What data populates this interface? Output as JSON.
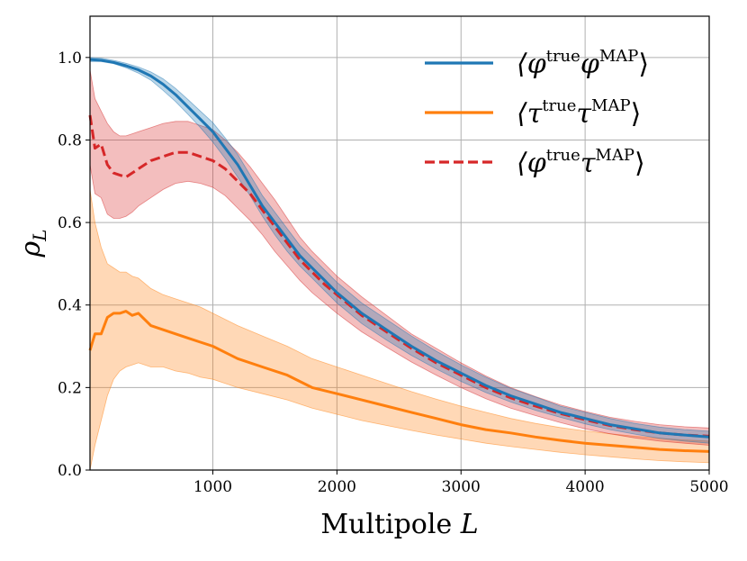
{
  "chart_data": {
    "type": "line",
    "title": "",
    "xlabel": "Multipole L",
    "ylabel": "ρ_L",
    "xlim": [
      10,
      5000
    ],
    "ylim": [
      0.0,
      1.1
    ],
    "xticks": [
      1000,
      2000,
      3000,
      4000,
      5000
    ],
    "xtick_labels": [
      "1000",
      "2000",
      "3000",
      "4000",
      "5000"
    ],
    "yticks": [
      0.0,
      0.2,
      0.4,
      0.6,
      0.8,
      1.0
    ],
    "ytick_labels": [
      "0.0",
      "0.2",
      "0.4",
      "0.6",
      "0.8",
      "1.0"
    ],
    "grid": true,
    "legend_position": "top-right",
    "series": [
      {
        "name": "⟨φ^true φ^MAP⟩",
        "legend_main": "⟨φ",
        "legend_sup1": "true",
        "legend_mid": "φ",
        "legend_sup2": "MAP",
        "legend_close": "⟩",
        "color": "#1f77b4",
        "linestyle": "solid",
        "x": [
          10,
          100,
          200,
          300,
          400,
          500,
          600,
          700,
          800,
          900,
          1000,
          1100,
          1200,
          1300,
          1400,
          1500,
          1600,
          1700,
          1800,
          1900,
          2000,
          2200,
          2400,
          2600,
          2800,
          3000,
          3200,
          3400,
          3600,
          3800,
          4000,
          4200,
          4400,
          4600,
          4800,
          5000
        ],
        "y": [
          0.995,
          0.993,
          0.988,
          0.98,
          0.97,
          0.955,
          0.935,
          0.91,
          0.88,
          0.85,
          0.82,
          0.78,
          0.74,
          0.69,
          0.64,
          0.6,
          0.56,
          0.52,
          0.49,
          0.46,
          0.43,
          0.38,
          0.34,
          0.3,
          0.265,
          0.235,
          0.205,
          0.18,
          0.16,
          0.14,
          0.125,
          0.11,
          0.1,
          0.09,
          0.085,
          0.08
        ],
        "band_lower": [
          0.99,
          0.99,
          0.985,
          0.975,
          0.962,
          0.945,
          0.92,
          0.893,
          0.862,
          0.83,
          0.795,
          0.755,
          0.71,
          0.665,
          0.615,
          0.57,
          0.53,
          0.495,
          0.465,
          0.435,
          0.405,
          0.355,
          0.315,
          0.278,
          0.245,
          0.215,
          0.188,
          0.165,
          0.145,
          0.128,
          0.112,
          0.098,
          0.087,
          0.077,
          0.07,
          0.065
        ],
        "band_upper": [
          1.0,
          0.998,
          0.993,
          0.986,
          0.977,
          0.965,
          0.948,
          0.925,
          0.898,
          0.87,
          0.842,
          0.805,
          0.765,
          0.715,
          0.665,
          0.625,
          0.585,
          0.545,
          0.515,
          0.485,
          0.455,
          0.405,
          0.365,
          0.325,
          0.288,
          0.255,
          0.225,
          0.198,
          0.177,
          0.155,
          0.14,
          0.125,
          0.113,
          0.104,
          0.098,
          0.094
        ]
      },
      {
        "name": "⟨τ^true τ^MAP⟩",
        "legend_main": "⟨τ",
        "legend_sup1": "true",
        "legend_mid": "τ",
        "legend_sup2": "MAP",
        "legend_close": "⟩",
        "color": "#ff7f0e",
        "linestyle": "solid",
        "x": [
          10,
          50,
          100,
          150,
          200,
          250,
          300,
          350,
          400,
          500,
          600,
          700,
          800,
          900,
          1000,
          1200,
          1400,
          1600,
          1800,
          2000,
          2200,
          2400,
          2600,
          2800,
          3000,
          3200,
          3400,
          3600,
          3800,
          4000,
          4200,
          4400,
          4600,
          4800,
          5000
        ],
        "y": [
          0.29,
          0.33,
          0.33,
          0.37,
          0.38,
          0.38,
          0.385,
          0.375,
          0.38,
          0.35,
          0.34,
          0.33,
          0.32,
          0.31,
          0.3,
          0.27,
          0.25,
          0.23,
          0.2,
          0.185,
          0.17,
          0.155,
          0.14,
          0.125,
          0.11,
          0.098,
          0.09,
          0.08,
          0.072,
          0.065,
          0.06,
          0.055,
          0.05,
          0.047,
          0.045
        ],
        "band_lower": [
          0.0,
          0.06,
          0.12,
          0.18,
          0.22,
          0.24,
          0.25,
          0.255,
          0.26,
          0.25,
          0.25,
          0.24,
          0.235,
          0.225,
          0.22,
          0.2,
          0.185,
          0.17,
          0.15,
          0.135,
          0.12,
          0.108,
          0.096,
          0.085,
          0.075,
          0.065,
          0.057,
          0.05,
          0.043,
          0.037,
          0.032,
          0.027,
          0.023,
          0.02,
          0.018
        ],
        "band_upper": [
          0.68,
          0.6,
          0.54,
          0.5,
          0.49,
          0.48,
          0.48,
          0.47,
          0.465,
          0.44,
          0.425,
          0.415,
          0.405,
          0.395,
          0.38,
          0.35,
          0.325,
          0.3,
          0.27,
          0.25,
          0.23,
          0.21,
          0.19,
          0.172,
          0.155,
          0.14,
          0.125,
          0.113,
          0.103,
          0.095,
          0.088,
          0.082,
          0.077,
          0.073,
          0.07
        ]
      },
      {
        "name": "⟨φ^true τ^MAP⟩",
        "legend_main": "⟨φ",
        "legend_sup1": "true",
        "legend_mid": "τ",
        "legend_sup2": "MAP",
        "legend_close": "⟩",
        "color": "#d62728",
        "linestyle": "dashed",
        "x": [
          10,
          50,
          100,
          150,
          200,
          250,
          300,
          350,
          400,
          500,
          600,
          700,
          800,
          900,
          1000,
          1100,
          1200,
          1300,
          1400,
          1500,
          1600,
          1700,
          1800,
          1900,
          2000,
          2200,
          2400,
          2600,
          2800,
          3000,
          3200,
          3400,
          3600,
          3800,
          4000,
          4200,
          4400,
          4600,
          4800,
          5000
        ],
        "y": [
          0.86,
          0.78,
          0.79,
          0.74,
          0.72,
          0.715,
          0.71,
          0.72,
          0.73,
          0.75,
          0.76,
          0.77,
          0.77,
          0.76,
          0.75,
          0.73,
          0.7,
          0.67,
          0.63,
          0.59,
          0.55,
          0.51,
          0.48,
          0.45,
          0.425,
          0.375,
          0.335,
          0.295,
          0.26,
          0.23,
          0.2,
          0.175,
          0.155,
          0.137,
          0.122,
          0.108,
          0.098,
          0.09,
          0.085,
          0.082
        ],
        "band_lower": [
          0.74,
          0.67,
          0.66,
          0.62,
          0.61,
          0.61,
          0.615,
          0.625,
          0.64,
          0.66,
          0.68,
          0.695,
          0.7,
          0.695,
          0.685,
          0.665,
          0.635,
          0.605,
          0.57,
          0.53,
          0.495,
          0.46,
          0.43,
          0.405,
          0.38,
          0.335,
          0.298,
          0.262,
          0.23,
          0.2,
          0.173,
          0.15,
          0.132,
          0.115,
          0.1,
          0.088,
          0.078,
          0.07,
          0.065,
          0.06
        ],
        "band_upper": [
          0.97,
          0.9,
          0.87,
          0.84,
          0.82,
          0.81,
          0.81,
          0.815,
          0.82,
          0.83,
          0.84,
          0.845,
          0.845,
          0.835,
          0.825,
          0.8,
          0.77,
          0.735,
          0.695,
          0.655,
          0.61,
          0.565,
          0.53,
          0.5,
          0.47,
          0.42,
          0.375,
          0.33,
          0.295,
          0.26,
          0.228,
          0.2,
          0.178,
          0.158,
          0.142,
          0.128,
          0.118,
          0.11,
          0.105,
          0.102
        ]
      }
    ]
  }
}
